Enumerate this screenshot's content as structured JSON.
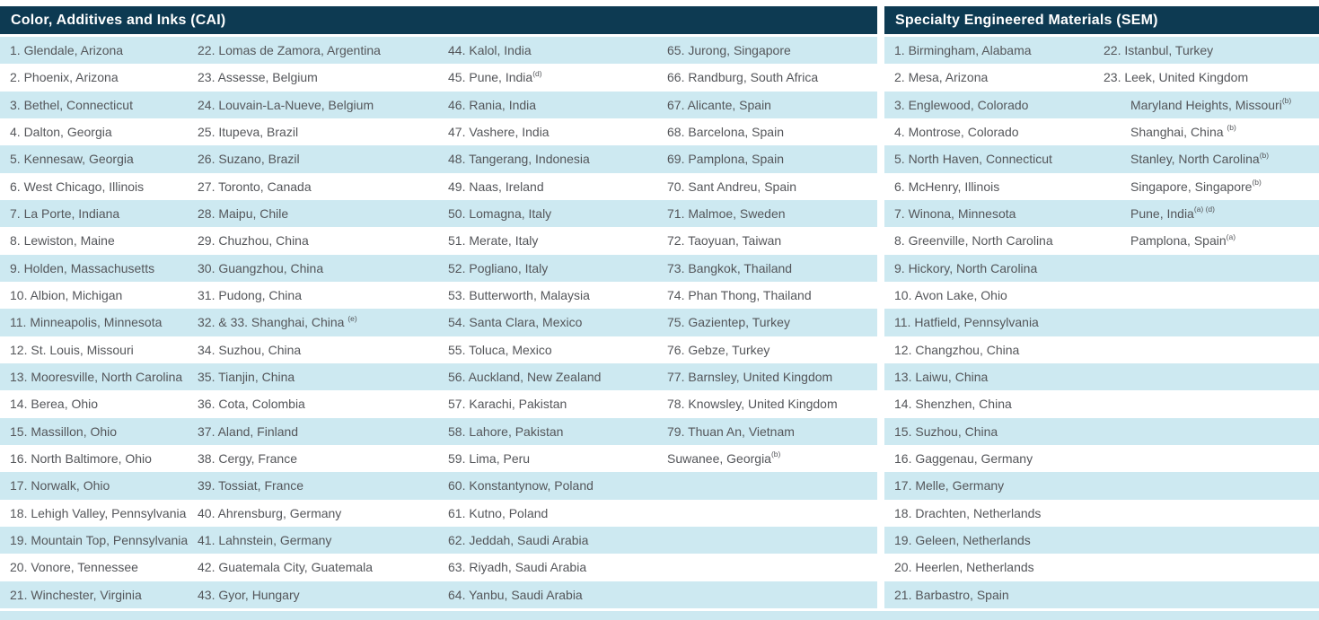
{
  "colors": {
    "header_bg": "#0d3a52",
    "header_text": "#ffffff",
    "stripe": "#cde9f1",
    "text": "#54565a"
  },
  "sections": [
    {
      "title": "Color, Additives and Inks (CAI)",
      "columns": [
        [
          {
            "text": "1. Glendale, Arizona"
          },
          {
            "text": "2. Phoenix, Arizona"
          },
          {
            "text": "3. Bethel, Connecticut"
          },
          {
            "text": "4. Dalton, Georgia"
          },
          {
            "text": "5. Kennesaw, Georgia"
          },
          {
            "text": "6. West Chicago, Illinois"
          },
          {
            "text": "7. La Porte, Indiana"
          },
          {
            "text": "8. Lewiston, Maine"
          },
          {
            "text": "9. Holden, Massachusetts"
          },
          {
            "text": "10. Albion, Michigan"
          },
          {
            "text": "11. Minneapolis, Minnesota"
          },
          {
            "text": "12. St. Louis, Missouri"
          },
          {
            "text": "13. Mooresville, North Carolina"
          },
          {
            "text": "14. Berea, Ohio"
          },
          {
            "text": "15. Massillon, Ohio"
          },
          {
            "text": "16. North Baltimore, Ohio"
          },
          {
            "text": "17. Norwalk, Ohio"
          },
          {
            "text": "18. Lehigh Valley, Pennsylvania"
          },
          {
            "text": "19. Mountain Top, Pennsylvania"
          },
          {
            "text": "20. Vonore, Tennessee"
          },
          {
            "text": "21. Winchester, Virginia"
          }
        ],
        [
          {
            "text": "22. Lomas de Zamora, Argentina"
          },
          {
            "text": "23. Assesse, Belgium"
          },
          {
            "text": "24. Louvain-La-Nueve, Belgium"
          },
          {
            "text": "25. Itupeva, Brazil"
          },
          {
            "text": "26. Suzano, Brazil"
          },
          {
            "text": "27. Toronto, Canada"
          },
          {
            "text": "28. Maipu, Chile"
          },
          {
            "text": "29. Chuzhou, China"
          },
          {
            "text": "30. Guangzhou, China"
          },
          {
            "text": "31. Pudong, China"
          },
          {
            "text": "32. & 33. Shanghai, China ",
            "sup": "(e)"
          },
          {
            "text": "34. Suzhou, China"
          },
          {
            "text": "35. Tianjin, China"
          },
          {
            "text": "36. Cota, Colombia"
          },
          {
            "text": "37. Aland, Finland"
          },
          {
            "text": "38. Cergy, France"
          },
          {
            "text": "39. Tossiat, France"
          },
          {
            "text": "40. Ahrensburg, Germany"
          },
          {
            "text": "41. Lahnstein, Germany"
          },
          {
            "text": "42. Guatemala City, Guatemala"
          },
          {
            "text": "43. Gyor, Hungary"
          }
        ],
        [
          {
            "text": "44. Kalol, India"
          },
          {
            "text": "45. Pune, India",
            "sup": "(d)"
          },
          {
            "text": "46. Rania, India"
          },
          {
            "text": "47. Vashere, India"
          },
          {
            "text": "48. Tangerang, Indonesia"
          },
          {
            "text": "49. Naas, Ireland"
          },
          {
            "text": "50. Lomagna, Italy"
          },
          {
            "text": "51. Merate, Italy"
          },
          {
            "text": "52. Pogliano, Italy"
          },
          {
            "text": "53. Butterworth, Malaysia"
          },
          {
            "text": "54. Santa Clara, Mexico"
          },
          {
            "text": "55. Toluca, Mexico"
          },
          {
            "text": "56. Auckland, New Zealand"
          },
          {
            "text": "57. Karachi, Pakistan"
          },
          {
            "text": "58. Lahore, Pakistan"
          },
          {
            "text": "59. Lima, Peru"
          },
          {
            "text": "60. Konstantynow, Poland"
          },
          {
            "text": "61. Kutno, Poland"
          },
          {
            "text": "62. Jeddah, Saudi Arabia"
          },
          {
            "text": "63. Riyadh, Saudi Arabia"
          },
          {
            "text": "64. Yanbu, Saudi Arabia"
          }
        ],
        [
          {
            "text": "65. Jurong, Singapore"
          },
          {
            "text": "66. Randburg, South Africa"
          },
          {
            "text": "67. Alicante, Spain"
          },
          {
            "text": "68. Barcelona, Spain"
          },
          {
            "text": "69. Pamplona, Spain"
          },
          {
            "text": "70. Sant Andreu, Spain"
          },
          {
            "text": "71. Malmoe, Sweden"
          },
          {
            "text": "72. Taoyuan, Taiwan"
          },
          {
            "text": "73. Bangkok, Thailand"
          },
          {
            "text": "74. Phan Thong, Thailand"
          },
          {
            "text": "75. Gazientep, Turkey"
          },
          {
            "text": "76. Gebze, Turkey"
          },
          {
            "text": "77. Barnsley, United Kingdom"
          },
          {
            "text": "78. Knowsley, United Kingdom"
          },
          {
            "text": "79. Thuan An, Vietnam"
          },
          {
            "text": "Suwanee, Georgia",
            "sup": "(b)"
          }
        ]
      ]
    },
    {
      "title": "Specialty Engineered Materials (SEM)",
      "columns": [
        [
          {
            "text": "1. Birmingham, Alabama"
          },
          {
            "text": "2. Mesa, Arizona"
          },
          {
            "text": "3. Englewood, Colorado"
          },
          {
            "text": "4. Montrose, Colorado"
          },
          {
            "text": "5. North Haven, Connecticut"
          },
          {
            "text": "6. McHenry, Illinois"
          },
          {
            "text": "7. Winona, Minnesota"
          },
          {
            "text": "8. Greenville, North Carolina"
          },
          {
            "text": "9. Hickory, North Carolina"
          },
          {
            "text": "10. Avon Lake, Ohio"
          },
          {
            "text": "11. Hatfield, Pennsylvania"
          },
          {
            "text": "12. Changzhou, China"
          },
          {
            "text": "13. Laiwu, China"
          },
          {
            "text": "14. Shenzhen, China"
          },
          {
            "text": "15. Suzhou, China"
          },
          {
            "text": "16. Gaggenau, Germany"
          },
          {
            "text": "17. Melle, Germany"
          },
          {
            "text": "18. Drachten, Netherlands"
          },
          {
            "text": "19. Geleen, Netherlands"
          },
          {
            "text": "20. Heerlen, Netherlands"
          },
          {
            "text": "21. Barbastro, Spain"
          }
        ],
        [
          {
            "text": "22. Istanbul, Turkey"
          },
          {
            "text": "23. Leek, United Kingdom"
          },
          {
            "text": "Maryland Heights, Missouri",
            "sup": "(b)",
            "indent": true
          },
          {
            "text": "Shanghai, China ",
            "sup": "(b)",
            "indent": true
          },
          {
            "text": "Stanley, North Carolina",
            "sup": "(b)",
            "indent": true
          },
          {
            "text": "Singapore, Singapore",
            "sup": "(b)",
            "indent": true
          },
          {
            "text": "Pune, India",
            "sup": "(a) (d)",
            "indent": true
          },
          {
            "text": "Pamplona, Spain",
            "sup": "(a)",
            "indent": true
          }
        ]
      ]
    }
  ]
}
